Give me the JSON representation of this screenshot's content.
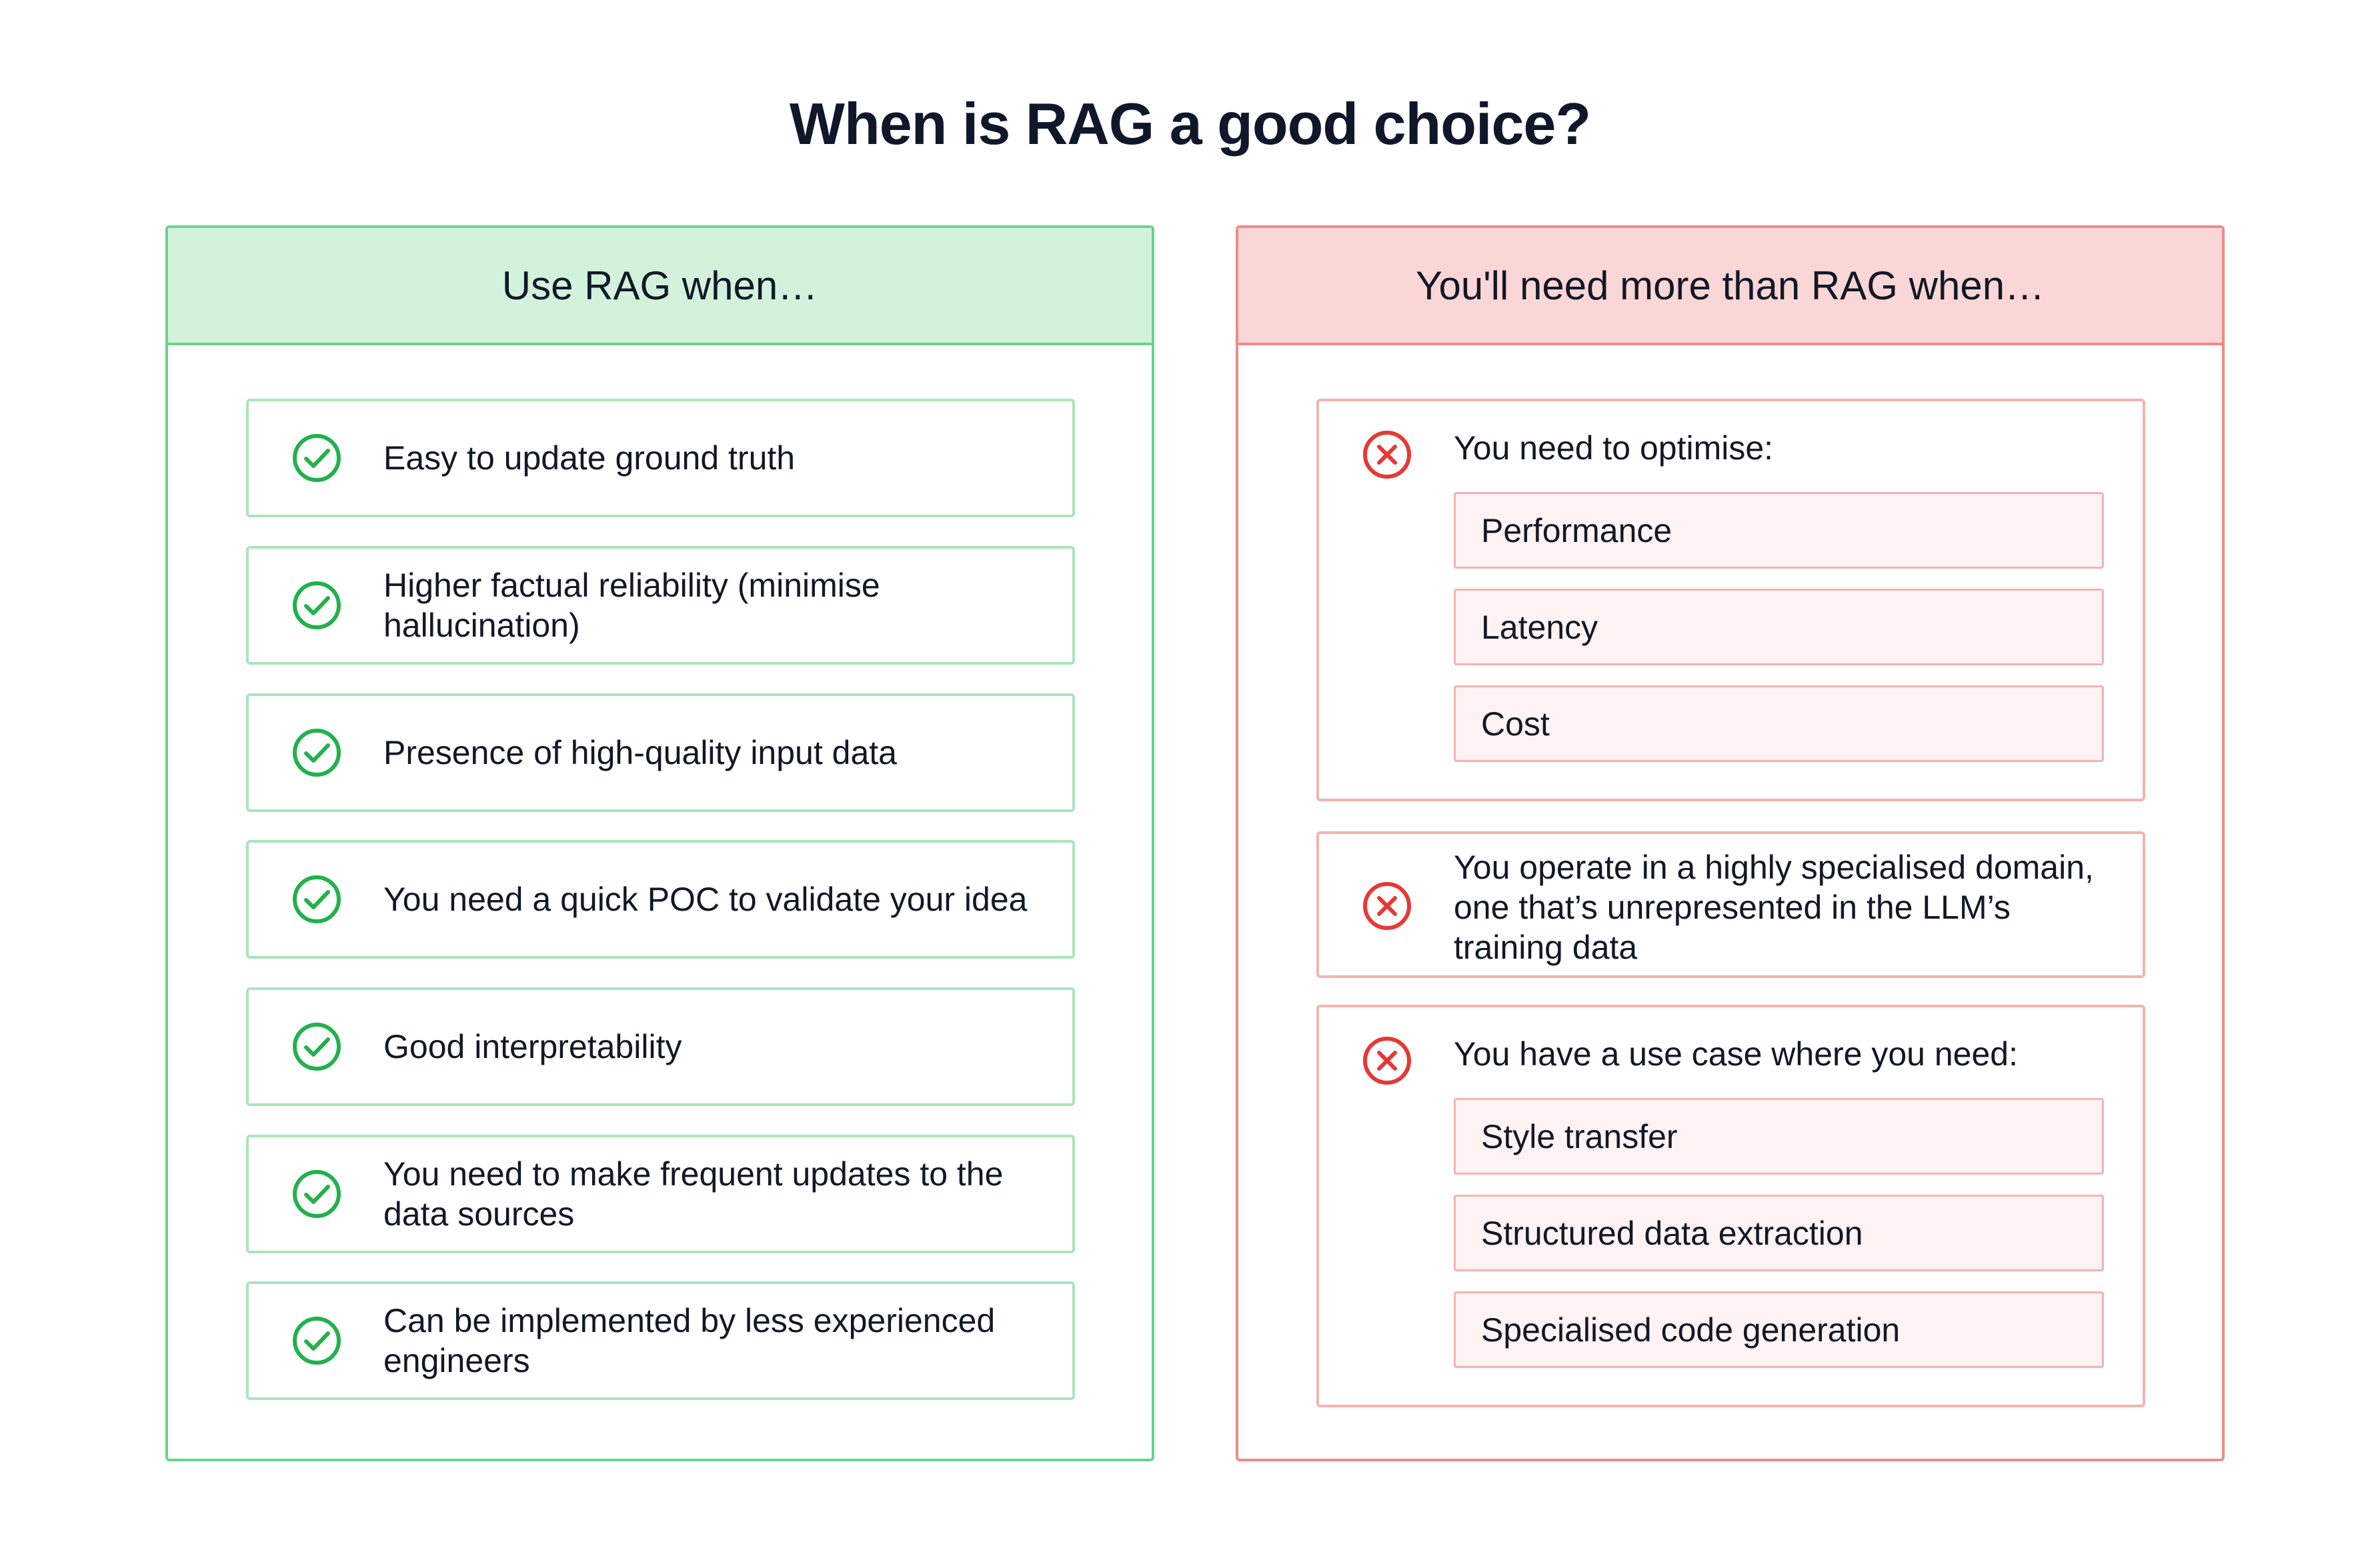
{
  "title": "When is RAG a good choice?",
  "colors": {
    "good_accent": "#22b14c",
    "good_header_bg": "#d2f2dc",
    "bad_accent": "#e53935",
    "bad_header_bg": "#fbd6d6",
    "sub_item_bg": "#fef2f2"
  },
  "good": {
    "header": "Use RAG when…",
    "icon": "check-circle-icon",
    "items": [
      "Easy to update ground truth",
      "Higher factual reliability (minimise hallucination)",
      "Presence of high-quality input data",
      "You need a quick POC to validate your idea",
      "Good interpretability",
      "You need to make frequent updates to the data sources",
      "Can be implemented by less experienced engineers"
    ]
  },
  "bad": {
    "header": "You'll need more than RAG when…",
    "icon": "x-circle-icon",
    "items": [
      {
        "text": "You need to optimise:",
        "subitems": [
          "Performance",
          "Latency",
          "Cost"
        ]
      },
      {
        "text": "You operate in a highly specialised domain, one that’s unrepresented in the LLM’s training data"
      },
      {
        "text": "You have a use case where you need:",
        "subitems": [
          "Style transfer",
          "Structured data extraction",
          "Specialised code generation"
        ]
      }
    ]
  }
}
